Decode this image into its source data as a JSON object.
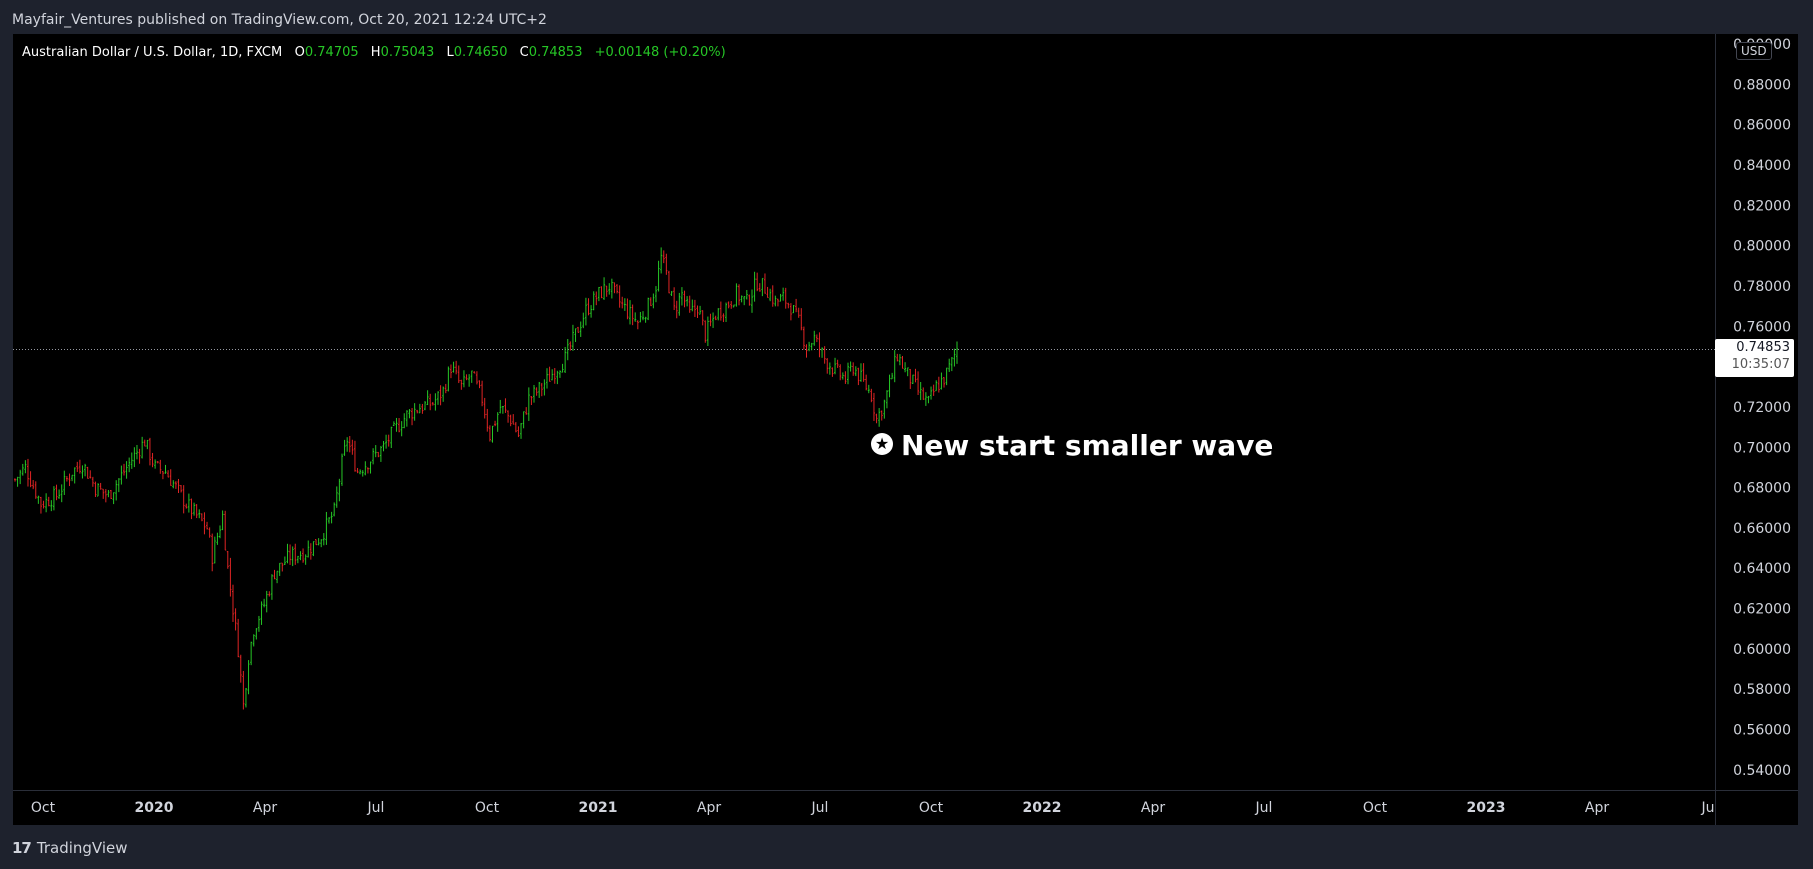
{
  "header": {
    "publisher_line": "Mayfair_Ventures published on TradingView.com, Oct 20, 2021 12:24 UTC+2"
  },
  "legend": {
    "symbol": "Australian Dollar / U.S. Dollar, 1D, FXCM",
    "open_label": "O",
    "open": "0.74705",
    "high_label": "H",
    "high": "0.75043",
    "low_label": "L",
    "low": "0.74650",
    "close_label": "C",
    "close": "0.74853",
    "change": "+0.00148 (+0.20%)"
  },
  "price_scale": {
    "currency": "USD",
    "last_price": "0.74853",
    "countdown": "10:35:07"
  },
  "annotation": {
    "icon": "star-circle-icon",
    "text": "New start smaller wave"
  },
  "footer": {
    "brand": "TradingView",
    "logo_icon": "tradingview-logo-icon"
  },
  "colors": {
    "up": "#26c626",
    "down": "#e02424",
    "background": "#000000",
    "chrome": "#1e222d",
    "text": "#d1d4dc"
  },
  "chart_data": {
    "type": "candlestick",
    "interval": "1D",
    "y_ticks": [
      "0.90000",
      "0.88000",
      "0.86000",
      "0.84000",
      "0.82000",
      "0.80000",
      "0.78000",
      "0.76000",
      "0.74000",
      "0.72000",
      "0.70000",
      "0.68000",
      "0.66000",
      "0.64000",
      "0.62000",
      "0.60000",
      "0.58000",
      "0.56000",
      "0.54000"
    ],
    "ylim": [
      0.53,
      0.905
    ],
    "x_ticks": [
      {
        "label": "Oct",
        "bold": false
      },
      {
        "label": "2020",
        "bold": true
      },
      {
        "label": "Apr",
        "bold": false
      },
      {
        "label": "Jul",
        "bold": false
      },
      {
        "label": "Oct",
        "bold": false
      },
      {
        "label": "2021",
        "bold": true
      },
      {
        "label": "Apr",
        "bold": false
      },
      {
        "label": "Jul",
        "bold": false
      },
      {
        "label": "Oct",
        "bold": false
      },
      {
        "label": "2022",
        "bold": true
      },
      {
        "label": "Apr",
        "bold": false
      },
      {
        "label": "Jul",
        "bold": false
      },
      {
        "label": "Oct",
        "bold": false
      },
      {
        "label": "2023",
        "bold": true
      },
      {
        "label": "Apr",
        "bold": false
      },
      {
        "label": "Ju",
        "bold": false
      }
    ],
    "price_path": [
      [
        0,
        0.684
      ],
      [
        4,
        0.69
      ],
      [
        10,
        0.672
      ],
      [
        16,
        0.676
      ],
      [
        22,
        0.688
      ],
      [
        26,
        0.692
      ],
      [
        31,
        0.68
      ],
      [
        36,
        0.676
      ],
      [
        41,
        0.686
      ],
      [
        45,
        0.694
      ],
      [
        50,
        0.703
      ],
      [
        54,
        0.69
      ],
      [
        58,
        0.688
      ],
      [
        62,
        0.68
      ],
      [
        66,
        0.672
      ],
      [
        70,
        0.666
      ],
      [
        74,
        0.66
      ],
      [
        76,
        0.646
      ],
      [
        80,
        0.666
      ],
      [
        82,
        0.64
      ],
      [
        86,
        0.6
      ],
      [
        88,
        0.572
      ],
      [
        90,
        0.596
      ],
      [
        92,
        0.61
      ],
      [
        96,
        0.622
      ],
      [
        100,
        0.638
      ],
      [
        106,
        0.646
      ],
      [
        112,
        0.648
      ],
      [
        118,
        0.656
      ],
      [
        123,
        0.668
      ],
      [
        126,
        0.692
      ],
      [
        128,
        0.704
      ],
      [
        132,
        0.688
      ],
      [
        137,
        0.694
      ],
      [
        142,
        0.7
      ],
      [
        146,
        0.708
      ],
      [
        151,
        0.716
      ],
      [
        156,
        0.72
      ],
      [
        161,
        0.722
      ],
      [
        165,
        0.728
      ],
      [
        168,
        0.74
      ],
      [
        172,
        0.73
      ],
      [
        176,
        0.736
      ],
      [
        180,
        0.724
      ],
      [
        183,
        0.706
      ],
      [
        187,
        0.72
      ],
      [
        191,
        0.714
      ],
      [
        194,
        0.706
      ],
      [
        198,
        0.724
      ],
      [
        203,
        0.73
      ],
      [
        208,
        0.738
      ],
      [
        212,
        0.744
      ],
      [
        216,
        0.756
      ],
      [
        220,
        0.768
      ],
      [
        225,
        0.776
      ],
      [
        229,
        0.78
      ],
      [
        233,
        0.772
      ],
      [
        237,
        0.766
      ],
      [
        240,
        0.762
      ],
      [
        244,
        0.77
      ],
      [
        247,
        0.78
      ],
      [
        249,
        0.794
      ],
      [
        251,
        0.786
      ],
      [
        254,
        0.768
      ],
      [
        257,
        0.776
      ],
      [
        260,
        0.766
      ],
      [
        263,
        0.77
      ],
      [
        266,
        0.756
      ],
      [
        270,
        0.766
      ],
      [
        274,
        0.77
      ],
      [
        278,
        0.776
      ],
      [
        282,
        0.772
      ],
      [
        286,
        0.782
      ],
      [
        290,
        0.778
      ],
      [
        293,
        0.772
      ],
      [
        296,
        0.774
      ],
      [
        299,
        0.77
      ],
      [
        302,
        0.762
      ],
      [
        305,
        0.75
      ],
      [
        308,
        0.754
      ],
      [
        312,
        0.744
      ],
      [
        316,
        0.738
      ],
      [
        320,
        0.734
      ],
      [
        323,
        0.74
      ],
      [
        327,
        0.732
      ],
      [
        330,
        0.726
      ],
      [
        332,
        0.714
      ],
      [
        335,
        0.722
      ],
      [
        338,
        0.736
      ],
      [
        340,
        0.746
      ],
      [
        343,
        0.738
      ],
      [
        346,
        0.732
      ],
      [
        349,
        0.726
      ],
      [
        352,
        0.722
      ],
      [
        355,
        0.73
      ],
      [
        358,
        0.734
      ],
      [
        361,
        0.742
      ],
      [
        363,
        0.749
      ]
    ]
  }
}
